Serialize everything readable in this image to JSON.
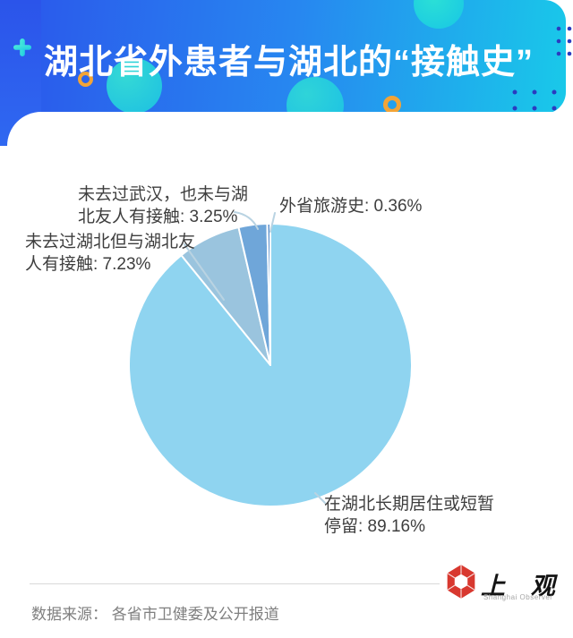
{
  "header": {
    "title": "湖北省外患者与湖北的“接触史”",
    "gradient_left": "#2B55EB",
    "gradient_right": "#19C9E9",
    "accent_orange": "#F2A437",
    "accent_teal": "#26DACD",
    "dot_color": "#2A3BC0"
  },
  "chart_data": {
    "type": "pie",
    "title": "湖北省外患者与湖北的“接触史”",
    "unit": "%",
    "start_angle_deg": 0,
    "direction": "clockwise",
    "legend_position": "none",
    "slices": [
      {
        "label": "在湖北长期居住或短暂停留",
        "value": 89.16,
        "color": "#8FD4F0"
      },
      {
        "label": "未去过湖北但与湖北友人有接触",
        "value": 7.23,
        "color": "#9AC4DE"
      },
      {
        "label": "未去过武汉，也未与湖北友人有接触",
        "value": 3.25,
        "color": "#6FA6D9"
      },
      {
        "label": "外省旅游史",
        "value": 0.36,
        "color": "#5E92CD"
      }
    ]
  },
  "labels": {
    "l_325": {
      "line1": "未去过武汉，也未与湖",
      "line2": "北友人有接触: 3.25%"
    },
    "l_036": {
      "text": "外省旅游史: 0.36%"
    },
    "l_723": {
      "line1": "未去过湖北但与湖北友",
      "line2": "人有接触: 7.23%"
    },
    "l_8916": {
      "line1": "在湖北长期居住或短暂",
      "line2": "停留: 89.16%"
    }
  },
  "footer": {
    "source": "数据来源：  各省市卫健委及公开报道",
    "logo_cn": "上 观",
    "logo_en": "Shanghai Observer",
    "logo_color": "#D8382F"
  }
}
